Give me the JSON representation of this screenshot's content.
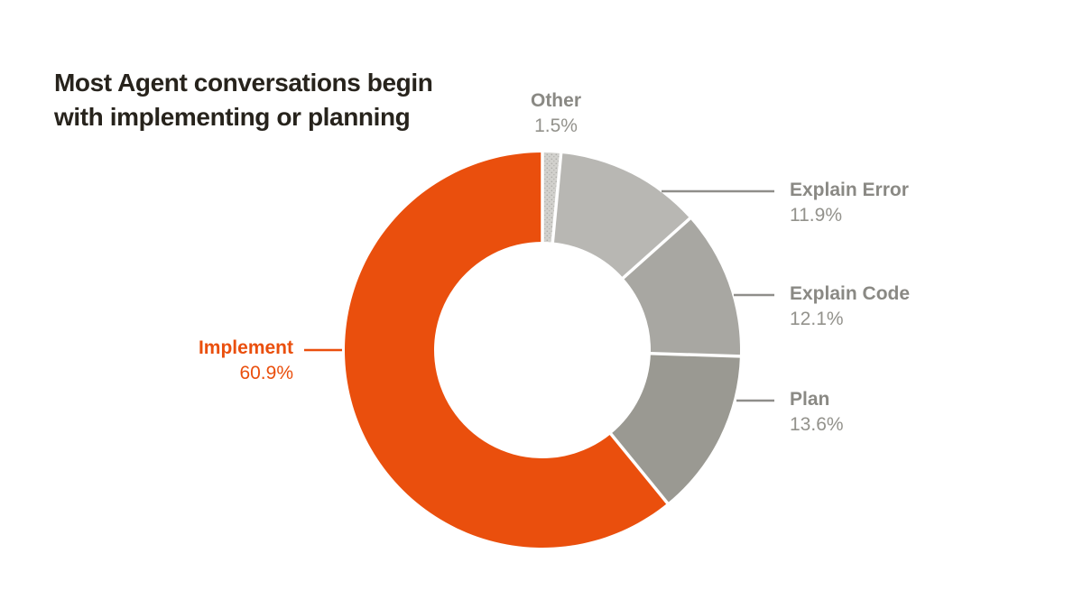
{
  "title": "Most Agent conversations begin with implementing or planning",
  "title_lines": [
    "Most Agent conversations begin",
    "with implementing or planning"
  ],
  "chart_data": {
    "type": "pie",
    "subtype": "donut",
    "title": "Most Agent conversations begin with implementing or planning",
    "unit": "%",
    "direction": "clockwise",
    "start_angle_deg": 0,
    "inner_radius_ratio": 0.55,
    "background": "#ffffff",
    "gap_color": "#ffffff",
    "slices": [
      {
        "label": "Other",
        "value": 1.5,
        "display": "1.5%",
        "color": "#d2d1cd",
        "textured": true,
        "label_color": "#8a8984"
      },
      {
        "label": "Explain Error",
        "value": 11.9,
        "display": "11.9%",
        "color": "#b8b7b3",
        "textured": false,
        "label_color": "#8a8984"
      },
      {
        "label": "Explain Code",
        "value": 12.1,
        "display": "12.1%",
        "color": "#a8a7a2",
        "textured": false,
        "label_color": "#8a8984"
      },
      {
        "label": "Plan",
        "value": 13.6,
        "display": "13.6%",
        "color": "#9a9992",
        "textured": false,
        "label_color": "#8a8984"
      },
      {
        "label": "Implement",
        "value": 60.9,
        "display": "60.9%",
        "color": "#ea4f0d",
        "textured": false,
        "label_color": "#ea4f0d"
      }
    ],
    "accent_color": "#ea4f0d",
    "leader_line_gray": "#8f8e8a"
  }
}
